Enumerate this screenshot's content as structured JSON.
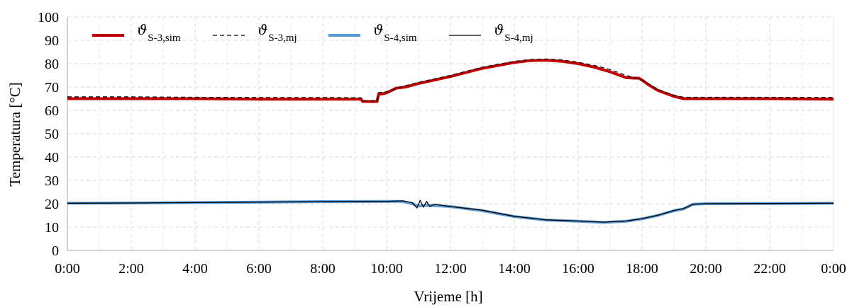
{
  "chart_data": {
    "type": "line",
    "title": "",
    "xlabel": "Vrijeme [h]",
    "ylabel": "Temperatura [°C]",
    "xlim": [
      0,
      24
    ],
    "ylim": [
      0,
      100
    ],
    "x_ticks": [
      "0:00",
      "2:00",
      "4:00",
      "6:00",
      "8:00",
      "10:00",
      "12:00",
      "14:00",
      "16:00",
      "18:00",
      "20:00",
      "22:00",
      "0:00"
    ],
    "y_ticks": [
      0,
      10,
      20,
      30,
      40,
      50,
      60,
      70,
      80,
      90,
      100
    ],
    "grid": true,
    "legend_position": "top-left",
    "series": [
      {
        "name": "ϑ",
        "subscript": "S-3,sim",
        "color": "#c00000",
        "style": "solid-thick",
        "x": [
          0,
          2,
          4,
          6,
          8,
          9.2,
          9.25,
          9.7,
          9.75,
          9.85,
          10,
          10.3,
          10.6,
          11,
          12,
          13,
          14,
          14.5,
          15,
          15.5,
          16,
          16.5,
          17,
          17.5,
          17.75,
          17.9,
          18,
          18.2,
          18.5,
          19,
          19.3,
          20,
          22,
          24
        ],
        "y": [
          65,
          65,
          65,
          64.8,
          64.8,
          64.8,
          63.8,
          63.8,
          67,
          67,
          67.5,
          69.5,
          70,
          71.5,
          74.5,
          78,
          80.5,
          81.3,
          81.5,
          81,
          80,
          78.5,
          76.5,
          74,
          73.8,
          73.8,
          73,
          71,
          68.5,
          66,
          65,
          65,
          65,
          64.8
        ]
      },
      {
        "name": "ϑ",
        "subscript": "S-3,mj",
        "color": "#000000",
        "style": "dashed",
        "x": [
          0,
          2,
          4,
          6,
          8,
          9.2,
          9.25,
          9.7,
          9.75,
          10,
          10.5,
          11,
          12,
          13,
          14,
          14.5,
          15,
          15.5,
          16,
          16.5,
          17,
          17.5,
          18,
          18.5,
          19,
          19.3,
          20,
          22,
          24
        ],
        "y": [
          65.8,
          65.8,
          65.6,
          65.5,
          65.5,
          65.4,
          64,
          64,
          67.6,
          68,
          70.3,
          72,
          75,
          78.5,
          81,
          81.8,
          82,
          81.6,
          80.6,
          79.3,
          77.5,
          75,
          73,
          69,
          66.5,
          65.6,
          65.6,
          65.6,
          65.5
        ]
      },
      {
        "name": "ϑ",
        "subscript": "S-4,sim",
        "color": "#5b9bd5",
        "style": "solid-thick",
        "x": [
          0,
          2,
          4,
          6,
          8,
          10,
          10.5,
          10.8,
          11,
          11.3,
          12,
          13,
          14,
          15,
          16,
          16.8,
          17.5,
          18,
          18.5,
          19,
          19.3,
          19.6,
          20,
          22,
          24
        ],
        "y": [
          20.2,
          20.3,
          20.5,
          20.7,
          20.9,
          21,
          21,
          20,
          19,
          19.3,
          18.8,
          17,
          14.5,
          13,
          12.5,
          12,
          12.5,
          13.5,
          15,
          17,
          17.8,
          19.8,
          20,
          20.1,
          20.2
        ]
      },
      {
        "name": "ϑ",
        "subscript": "S-4,mj",
        "color": "#000000",
        "style": "solid-thin",
        "x": [
          0,
          2,
          4,
          6,
          8,
          10,
          10.5,
          10.8,
          10.95,
          11.05,
          11.15,
          11.25,
          11.35,
          11.5,
          12,
          13,
          14,
          15,
          16,
          16.8,
          17.5,
          18,
          18.5,
          19,
          19.3,
          19.6,
          20,
          22,
          24
        ],
        "y": [
          20.2,
          20.3,
          20.5,
          20.7,
          20.9,
          21,
          21.2,
          20.5,
          18.2,
          21.5,
          18.5,
          21,
          18.8,
          19.8,
          18.8,
          17.2,
          14.6,
          13.1,
          12.6,
          12.1,
          12.6,
          13.6,
          15.1,
          17.1,
          17.9,
          19.8,
          20,
          20.1,
          20.2
        ]
      }
    ]
  }
}
